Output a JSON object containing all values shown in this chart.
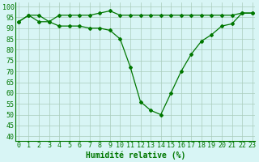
{
  "line1": [
    93,
    96,
    96,
    93,
    96,
    96,
    96,
    96,
    97,
    98,
    96,
    96,
    96,
    96,
    96,
    96,
    96,
    96,
    96,
    96,
    96,
    96,
    97,
    97
  ],
  "line2": [
    93,
    96,
    93,
    93,
    91,
    91,
    91,
    90,
    90,
    89,
    85,
    72,
    56,
    52,
    50,
    60,
    70,
    78,
    84,
    87,
    91,
    92,
    97,
    97
  ],
  "hours": [
    0,
    1,
    2,
    3,
    4,
    5,
    6,
    7,
    8,
    9,
    10,
    11,
    12,
    13,
    14,
    15,
    16,
    17,
    18,
    19,
    20,
    21,
    22,
    23
  ],
  "line_color": "#007700",
  "bg_color": "#d8f5f5",
  "grid_color": "#aaccbb",
  "xlabel": "Humidité relative (%)",
  "ylim": [
    38,
    102
  ],
  "xlim": [
    -0.3,
    23.3
  ],
  "yticks": [
    40,
    45,
    50,
    55,
    60,
    65,
    70,
    75,
    80,
    85,
    90,
    95,
    100
  ],
  "xlabel_fontsize": 7,
  "tick_fontsize": 6,
  "marker": "D",
  "marker_size": 2,
  "line_width": 0.9
}
